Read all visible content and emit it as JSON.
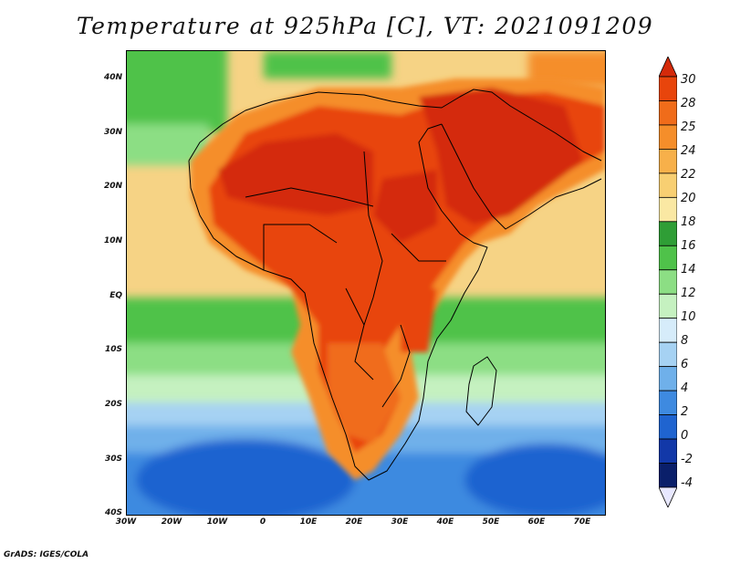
{
  "title": "Temperature at 925hPa [C], VT: 2021091209",
  "footer": "GrADS: IGES/COLA",
  "map": {
    "lat_ticks": [
      "40N",
      "30N",
      "20N",
      "10N",
      "EQ",
      "10S",
      "20S",
      "30S",
      "40S"
    ],
    "lon_ticks": [
      "30W",
      "20W",
      "10W",
      "0",
      "10E",
      "20E",
      "30E",
      "40E",
      "50E",
      "60E",
      "70E"
    ]
  },
  "colorbar": {
    "labels": [
      "30",
      "28",
      "25",
      "24",
      "22",
      "20",
      "18",
      "16",
      "14",
      "12",
      "10",
      "8",
      "6",
      "4",
      "2",
      "0",
      "-2",
      "-4"
    ],
    "colors": [
      "#d42a0a",
      "#e8450c",
      "#f06c1a",
      "#f58e2a",
      "#f7b04a",
      "#f8cf72",
      "#fae8a3",
      "#2f9e36",
      "#4fc24a",
      "#8cde84",
      "#c5f1c0",
      "#d6ecfa",
      "#a6d2f3",
      "#6fb0ea",
      "#3e8ae0",
      "#1f64d0",
      "#1238a8",
      "#0a1f6a",
      "#e8e8ff"
    ]
  }
}
